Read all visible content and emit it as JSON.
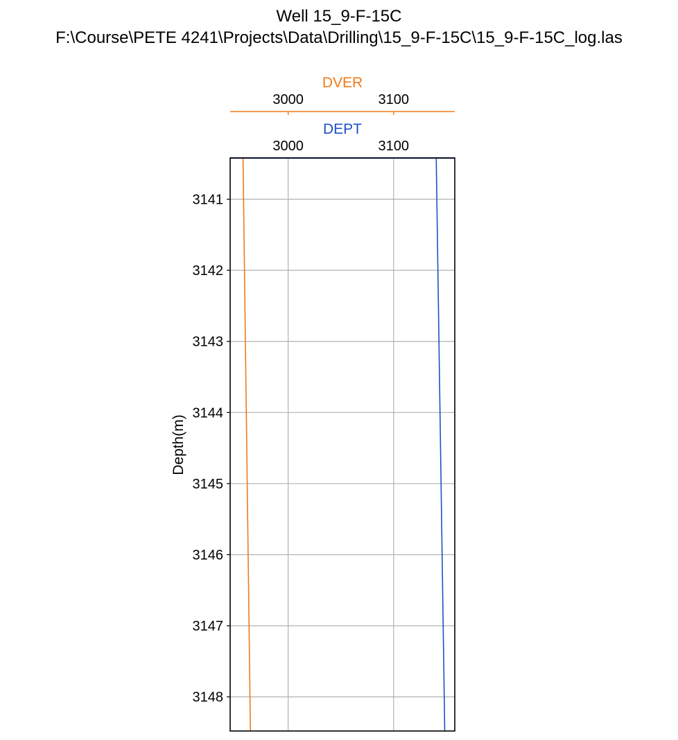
{
  "chart_data": {
    "type": "line",
    "title": "Well 15_9-F-15C",
    "subtitle": "F:\\Course\\PETE 4241\\Projects\\Data\\Drilling\\15_9-F-15C\\15_9-F-15C_log.las",
    "ylabel": "Depth(m)",
    "ylim": [
      3140.42,
      3148.48
    ],
    "y_inverted": true,
    "y_ticks": [
      3141,
      3142,
      3143,
      3144,
      3145,
      3146,
      3147,
      3148
    ],
    "y_tick_labels": [
      "3141",
      "3142",
      "3143",
      "3144",
      "3145",
      "3146",
      "3147",
      "3148"
    ],
    "grid": true,
    "tracks": [
      {
        "name": "DVER",
        "color": "#f07a1a",
        "xlim": [
          2945,
          3158
        ],
        "x_ticks": [
          3000,
          3100
        ],
        "x_tick_labels": [
          "3000",
          "3100"
        ],
        "depth": [
          3140.42,
          3148.48
        ],
        "values": [
          2957.2,
          2964.2
        ]
      },
      {
        "name": "DEPT",
        "color": "#1f4fc6",
        "xlim": [
          2945,
          3158
        ],
        "x_ticks": [
          3000,
          3100
        ],
        "x_tick_labels": [
          "3000",
          "3100"
        ],
        "depth": [
          3140.42,
          3148.48
        ],
        "values": [
          3140.42,
          3148.48
        ]
      }
    ]
  }
}
